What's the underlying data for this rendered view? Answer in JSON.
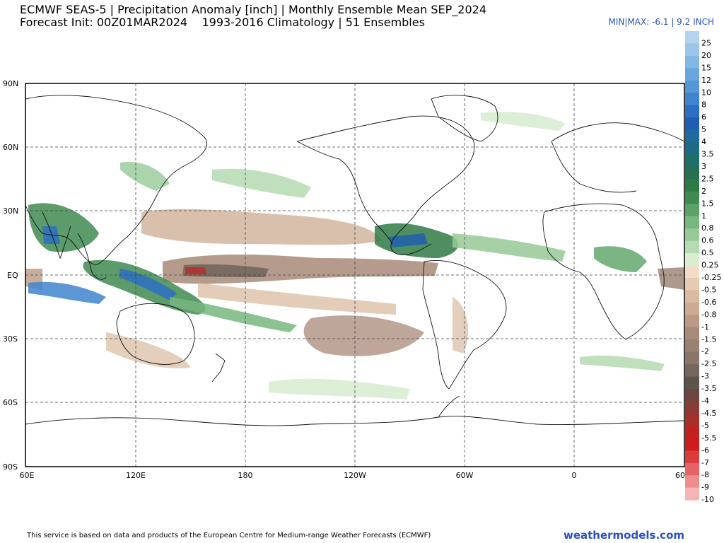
{
  "header": {
    "title_line1": "ECMWF SEAS-5 | Precipitation Anomaly [inch] | Monthly Ensemble Mean SEP_2024",
    "title_line2": "Forecast Init: 00Z01MAR2024    1993-2016 Climatology | 51 Ensembles",
    "minmax": "MIN|MAX: -6.1 | 9.2 INCH"
  },
  "map": {
    "lat_labels": [
      "90N",
      "60N",
      "30N",
      "EQ",
      "30S",
      "60S",
      "90S"
    ],
    "lon_labels": [
      "60E",
      "120E",
      "180",
      "120W",
      "60W",
      "0",
      "60"
    ]
  },
  "legend": {
    "wet_labels": [
      "25",
      "20",
      "15",
      "12",
      "10",
      "8",
      "6",
      "5",
      "4",
      "3.5",
      "3",
      "2.5",
      "2",
      "1.5",
      "1",
      "0.8",
      "0.6",
      "0.5",
      "0.25"
    ],
    "wet_colors": [
      "#b3d4ee",
      "#9bc6ea",
      "#83b7e4",
      "#6aa6de",
      "#5596d6",
      "#3f84cd",
      "#2c6ec2",
      "#1f5cb4",
      "#1f69a0",
      "#1d6a84",
      "#1f6e68",
      "#266f53",
      "#2f7a44",
      "#3f8a50",
      "#5aa265",
      "#77b77e",
      "#96c997",
      "#b5dbb1",
      "#d8edd2"
    ],
    "dry_labels": [
      "-0.25",
      "-0.5",
      "-0.6",
      "-0.8",
      "-1",
      "-1.5",
      "-2",
      "-2.5",
      "-3",
      "-3.5",
      "-4",
      "-4.5",
      "-5",
      "-5.5",
      "-6",
      "-7",
      "-8",
      "-9",
      "-10"
    ],
    "dry_colors": [
      "#f1ddc8",
      "#e6cbb0",
      "#d9bba0",
      "#cbab92",
      "#ba9a84",
      "#a88a78",
      "#988072",
      "#8a7568",
      "#74675d",
      "#5d544c",
      "#6d4640",
      "#8a3b36",
      "#a6302b",
      "#bf2220",
      "#cf1b1b",
      "#dc3b3b",
      "#e66363",
      "#ee8d8d",
      "#f6b4b4"
    ]
  },
  "footer": {
    "note": "This service is based on data and products of the European Centre for Medium-range Weather Forecasts (ECMWF)",
    "brand": "weathermodels.com"
  }
}
